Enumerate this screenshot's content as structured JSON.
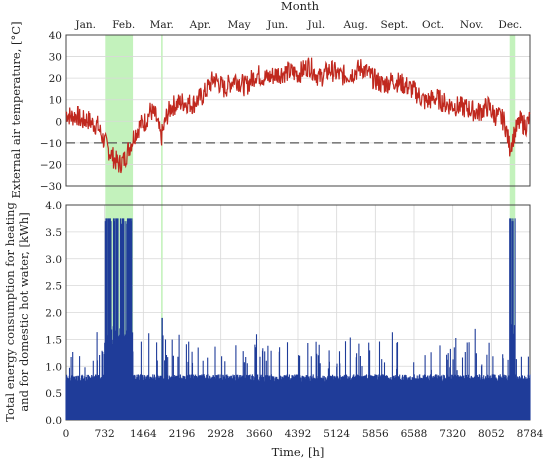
{
  "chart_data": [
    {
      "type": "line",
      "panel": "top",
      "ylabel": "External air temperature, [°C]",
      "ylim": [
        -30,
        40
      ],
      "yticks": [
        "40",
        "30",
        "20",
        "10",
        "0",
        "−10",
        "−20",
        "−30"
      ],
      "xlim": [
        0,
        8784
      ],
      "x2label": "Month",
      "month_labels": [
        "Jan.",
        "Feb.",
        "Mar.",
        "Apr.",
        "May",
        "Jun.",
        "Jul.",
        "Aug.",
        "Sept.",
        "Oct.",
        "Nov.",
        "Dec."
      ],
      "reference_line": -10,
      "highlight_ranges": [
        [
          744,
          1270
        ],
        [
          1800,
          1830
        ],
        [
          8400,
          8505
        ]
      ],
      "series": [
        {
          "color": "#c0281e",
          "x": [
            0,
            100,
            200,
            300,
            400,
            500,
            600,
            700,
            800,
            900,
            1000,
            1100,
            1200,
            1300,
            1400,
            1500,
            1600,
            1700,
            1800,
            1900,
            2000,
            2200,
            2400,
            2600,
            2800,
            3000,
            3200,
            3400,
            3600,
            3800,
            4000,
            4200,
            4400,
            4600,
            4800,
            5000,
            5200,
            5400,
            5600,
            5800,
            6000,
            6200,
            6400,
            6600,
            6800,
            7000,
            7200,
            7400,
            7600,
            7800,
            8000,
            8100,
            8200,
            8300,
            8400,
            8500,
            8600,
            8700,
            8784
          ],
          "values": [
            4,
            2,
            3,
            0,
            1,
            -1,
            -2,
            -8,
            -13,
            -17,
            -20,
            -18,
            -12,
            -6,
            -2,
            0,
            5,
            2,
            -8,
            2,
            7,
            9,
            8,
            12,
            20,
            15,
            20,
            16,
            22,
            20,
            22,
            23,
            22,
            26,
            20,
            24,
            21,
            22,
            25,
            20,
            17,
            19,
            17,
            14,
            9,
            11,
            8,
            7,
            6,
            4,
            7,
            3,
            2,
            0,
            -12,
            -5,
            0,
            -2,
            1
          ]
        }
      ]
    },
    {
      "type": "bar",
      "panel": "bottom",
      "xlabel": "Time, [h]",
      "ylabel_line1": "Total energy consumption for heating",
      "ylabel_line2": "and for domestic hot water, [kWh]",
      "ylim": [
        0,
        4.0
      ],
      "yticks": [
        "4.0",
        "3.5",
        "3.0",
        "2.5",
        "2.0",
        "1.5",
        "1.0",
        "0.5",
        "0.0"
      ],
      "xlim": [
        0,
        8784
      ],
      "xticks": [
        0,
        732,
        1464,
        2196,
        2928,
        3660,
        4392,
        5124,
        5856,
        6588,
        7320,
        8052,
        8784
      ],
      "highlight_ranges": [
        [
          744,
          1270
        ],
        [
          1800,
          1830
        ],
        [
          8400,
          8505
        ]
      ],
      "series": [
        {
          "color": "#1f3c99",
          "baseline_range": [
            0.7,
            0.85
          ],
          "spike_values": [
            1.5,
            1.3,
            1.7,
            1.2,
            1.6,
            1.4,
            1.3,
            1.7,
            1.5,
            1.6,
            1.4,
            1.3,
            1.5
          ],
          "peak_regions": [
            {
              "x_range": [
                744,
                1270
              ],
              "values": [
                3.75,
                3.75,
                3.75,
                3.7,
                3.75,
                3.65,
                3.75,
                3.7,
                3.75
              ]
            },
            {
              "x_range": [
                8400,
                8505
              ],
              "values": [
                3.7,
                3.75,
                3.7
              ]
            }
          ],
          "isolated_peak": {
            "x": 1820,
            "value": 1.9
          }
        }
      ]
    }
  ]
}
